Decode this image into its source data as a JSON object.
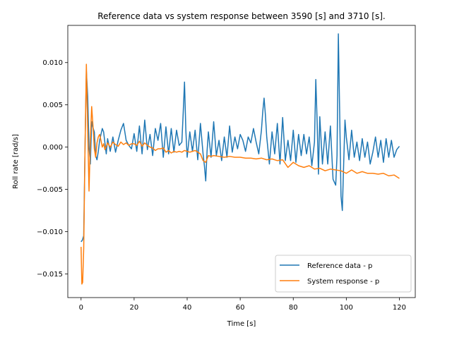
{
  "chart_data": {
    "type": "line",
    "title": "Reference data vs system response between 3590 [s] and 3710 [s].",
    "xlabel": "Time [s]",
    "ylabel": "Roll rate [rad/s]",
    "xlim": [
      -5,
      126
    ],
    "ylim": [
      -0.0178,
      0.0144
    ],
    "xticks": [
      0,
      20,
      40,
      60,
      80,
      100,
      120
    ],
    "xtick_labels": [
      "0",
      "20",
      "40",
      "60",
      "80",
      "100",
      "120"
    ],
    "yticks": [
      -0.015,
      -0.01,
      -0.005,
      0.0,
      0.005,
      0.01
    ],
    "ytick_labels": [
      "−0.015",
      "−0.010",
      "−0.005",
      "0.000",
      "0.005",
      "0.010"
    ],
    "grid": false,
    "legend_position": "lower right",
    "series": [
      {
        "name": "Reference data - p",
        "color": "#1f77b4",
        "x": [
          0,
          0.5,
          1,
          1.5,
          2,
          2.5,
          3,
          3.5,
          4,
          4.5,
          5,
          5.5,
          6,
          6.5,
          7,
          7.5,
          8,
          8.5,
          9,
          9.5,
          10,
          11,
          12,
          13,
          14,
          15,
          16,
          17,
          18,
          19,
          20,
          21,
          22,
          23,
          24,
          25,
          26,
          27,
          28,
          29,
          30,
          31,
          32,
          33,
          34,
          35,
          36,
          37,
          38,
          38.5,
          39,
          39.5,
          40,
          41,
          42,
          43,
          44,
          45,
          46,
          46.5,
          47,
          47.5,
          48,
          49,
          50,
          51,
          52,
          53,
          54,
          55,
          56,
          57,
          58,
          59,
          60,
          61,
          62,
          63,
          64,
          65,
          66,
          67,
          68,
          68.5,
          69,
          69.5,
          70,
          71,
          72,
          73,
          74,
          75,
          76,
          77,
          78,
          79,
          80,
          81,
          82,
          83,
          84,
          85,
          86,
          87,
          88,
          88.5,
          89,
          89.5,
          90,
          91,
          92,
          93,
          94,
          95,
          96,
          96.5,
          97,
          97.5,
          98,
          98.5,
          99,
          99.5,
          100,
          101,
          102,
          103,
          104,
          105,
          106,
          107,
          108,
          109,
          110,
          111,
          112,
          113,
          114,
          115,
          116,
          117,
          118,
          119,
          120
        ],
        "y": [
          -0.0112,
          -0.011,
          -0.0105,
          0.0,
          0.009,
          0.006,
          0.0,
          -0.002,
          0.003,
          0.0023,
          0.0018,
          -0.001,
          -0.0015,
          -0.0005,
          0.0008,
          0.0015,
          0.0022,
          0.0018,
          0.0005,
          -0.0008,
          0.001,
          -0.0005,
          0.0012,
          -0.0006,
          0.0008,
          0.002,
          0.0028,
          0.0008,
          0.0002,
          -0.0002,
          0.0016,
          -0.0005,
          0.0025,
          -0.0008,
          0.0032,
          -0.0003,
          0.0015,
          -0.001,
          0.0022,
          0.0008,
          0.0028,
          -0.0012,
          0.0024,
          -0.0008,
          0.0022,
          -0.0006,
          0.002,
          0.0002,
          0.0006,
          0.004,
          0.0077,
          0.002,
          -0.0012,
          0.0018,
          -0.0005,
          0.002,
          -0.0015,
          0.0028,
          -0.0008,
          -0.0022,
          -0.004,
          -0.0005,
          0.0018,
          -0.0012,
          0.003,
          -0.001,
          0.0008,
          -0.0016,
          0.0012,
          -0.0012,
          0.0025,
          -0.0006,
          0.0012,
          -0.0002,
          0.0015,
          0.0008,
          -0.0005,
          0.0012,
          0.0005,
          0.0022,
          0.0006,
          -0.0008,
          0.002,
          0.0042,
          0.0058,
          0.0038,
          0.0012,
          -0.002,
          0.0018,
          -0.0008,
          0.0028,
          -0.002,
          0.0035,
          -0.0016,
          0.0008,
          -0.0016,
          0.002,
          -0.0018,
          0.0015,
          -0.001,
          0.0015,
          -0.0008,
          0.0012,
          -0.0022,
          0.0006,
          0.008,
          0.003,
          -0.0032,
          0.0036,
          -0.002,
          0.0018,
          -0.002,
          0.0025,
          -0.0038,
          -0.0045,
          -0.001,
          0.0134,
          0.004,
          -0.0058,
          -0.0075,
          -0.002,
          0.0032,
          0.0012,
          -0.0015,
          0.002,
          -0.0012,
          0.0006,
          -0.0016,
          0.001,
          -0.0012,
          0.0006,
          -0.002,
          -0.0006,
          0.0012,
          -0.0012,
          0.0008,
          -0.0018,
          0.001,
          -0.0012,
          0.0008,
          -0.0012,
          -0.0003,
          0.0001
        ]
      },
      {
        "name": "System response - p",
        "color": "#ff7f0e",
        "x": [
          0,
          0.3,
          0.6,
          1,
          1.5,
          2,
          2.5,
          3,
          3.5,
          4,
          4.5,
          5,
          5.5,
          6,
          6.5,
          7,
          7.5,
          8,
          8.5,
          9,
          9.5,
          10,
          11,
          12,
          13,
          14,
          15,
          16,
          17,
          18,
          19,
          20,
          21,
          22,
          23,
          24,
          25,
          26,
          27,
          28,
          29,
          30,
          31,
          32,
          33,
          34,
          35,
          36,
          37,
          38,
          39,
          40,
          41,
          42,
          43,
          44,
          45,
          46,
          47,
          48,
          49,
          50,
          52,
          54,
          56,
          58,
          60,
          62,
          64,
          66,
          68,
          70,
          72,
          74,
          76,
          78,
          80,
          82,
          84,
          86,
          88,
          90,
          92,
          94,
          96,
          98,
          100,
          102,
          104,
          106,
          108,
          110,
          112,
          114,
          116,
          118,
          120
        ],
        "y": [
          -0.0118,
          -0.0162,
          -0.016,
          -0.012,
          0.0,
          0.0098,
          0.002,
          -0.0052,
          0.0008,
          0.0048,
          0.0025,
          -0.0002,
          -0.0012,
          0.0005,
          0.0012,
          0.0015,
          0.0008,
          0.0,
          0.0004,
          -0.0003,
          0.0001,
          0.0005,
          0.0,
          0.0006,
          0.0003,
          0.0001,
          0.0006,
          0.0003,
          0.0005,
          0.0002,
          0.0004,
          0.0004,
          0.0002,
          0.0007,
          0.0001,
          0.0005,
          0.0002,
          0.0,
          -0.0001,
          -0.0004,
          -0.0002,
          -0.0002,
          -0.0001,
          -0.0006,
          -0.0004,
          -0.0007,
          -0.0005,
          -0.0006,
          -0.0005,
          -0.0006,
          -0.0004,
          -0.0005,
          -0.0006,
          -0.0005,
          -0.0004,
          -0.0006,
          -0.0008,
          -0.0016,
          -0.0018,
          -0.001,
          -0.0011,
          -0.001,
          -0.0011,
          -0.0012,
          -0.0011,
          -0.0012,
          -0.0012,
          -0.0013,
          -0.0013,
          -0.0014,
          -0.0013,
          -0.0015,
          -0.0014,
          -0.0016,
          -0.0015,
          -0.0024,
          -0.0018,
          -0.0022,
          -0.0024,
          -0.0022,
          -0.0026,
          -0.0025,
          -0.0028,
          -0.0026,
          -0.0027,
          -0.0028,
          -0.0031,
          -0.0027,
          -0.0031,
          -0.0029,
          -0.0031,
          -0.0031,
          -0.0032,
          -0.0031,
          -0.0034,
          -0.0033,
          -0.0037
        ]
      }
    ]
  }
}
